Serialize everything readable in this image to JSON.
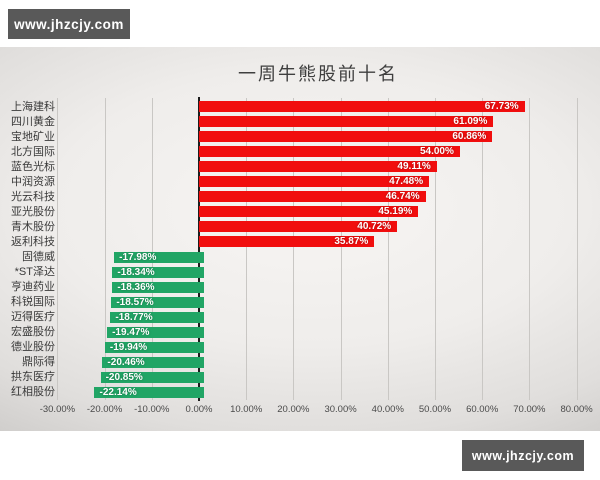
{
  "watermark_top": {
    "text": "www.jhzcjy.com"
  },
  "watermark_bottom": {
    "text": "www.jhzcjy.com"
  },
  "chart_data": {
    "type": "bar",
    "orientation": "horizontal",
    "title": "一周牛熊股前十名",
    "xlabel": "",
    "ylabel": "",
    "xlim": [
      -30,
      80
    ],
    "grid": "vertical",
    "legend_position": "none",
    "categories": [
      "上海建科",
      "四川黄金",
      "宝地矿业",
      "北方国际",
      "蓝色光标",
      "中润资源",
      "光云科技",
      "亚光股份",
      "青木股份",
      "返利科技",
      "固德威",
      "*ST泽达",
      "亨迪药业",
      "科锐国际",
      "迈得医疗",
      "宏盛股份",
      "德业股份",
      "鼎际得",
      "拱东医疗",
      "红相股份"
    ],
    "values": [
      67.73,
      61.09,
      60.86,
      54.0,
      49.11,
      47.48,
      46.74,
      45.19,
      40.72,
      35.87,
      -17.98,
      -18.34,
      -18.36,
      -18.57,
      -18.77,
      -19.47,
      -19.94,
      -20.46,
      -20.85,
      -22.14
    ],
    "data_labels": [
      "67.73%",
      "61.09%",
      "60.86%",
      "54.00%",
      "49.11%",
      "47.48%",
      "46.74%",
      "45.19%",
      "40.72%",
      "35.87%",
      "-17.98%",
      "-18.34%",
      "-18.36%",
      "-18.57%",
      "-18.77%",
      "-19.47%",
      "-19.94%",
      "-20.46%",
      "-20.85%",
      "-22.14%"
    ],
    "x_ticks": [
      {
        "value": -30,
        "label": "-30.00%"
      },
      {
        "value": -20,
        "label": "-20.00%"
      },
      {
        "value": -10,
        "label": "-10.00%"
      },
      {
        "value": 0,
        "label": "0.00%"
      },
      {
        "value": 10,
        "label": "10.00%"
      },
      {
        "value": 20,
        "label": "20.00%"
      },
      {
        "value": 30,
        "label": "30.00%"
      },
      {
        "value": 40,
        "label": "40.00%"
      },
      {
        "value": 50,
        "label": "50.00%"
      },
      {
        "value": 60,
        "label": "60.00%"
      },
      {
        "value": 70,
        "label": "70.00%"
      },
      {
        "value": 80,
        "label": "80.00%"
      }
    ],
    "colors": {
      "positive": "#f10e0e",
      "negative": "#21a565",
      "zero_line": "#1c1c1c",
      "gridline": "#c9c7c4"
    }
  }
}
